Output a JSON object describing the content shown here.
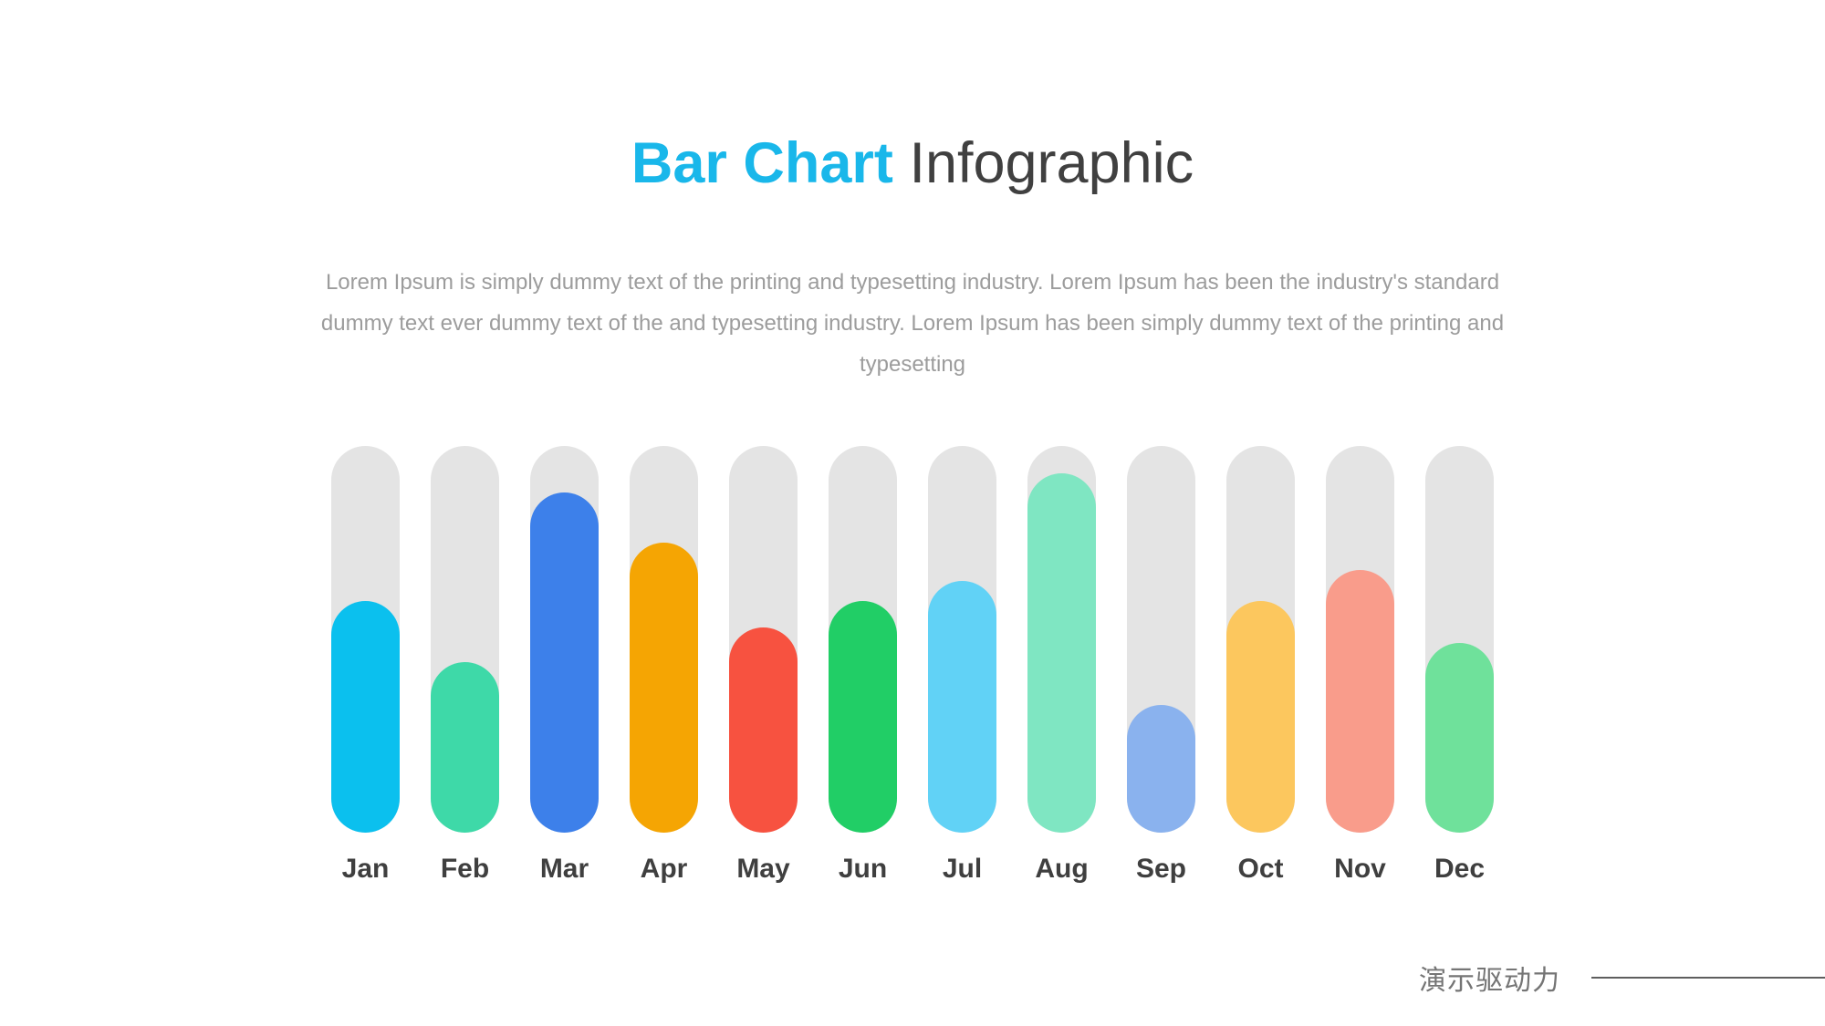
{
  "header": {
    "title_accent": "Bar Chart",
    "title_rest": "Infographic",
    "description": "Lorem Ipsum is simply dummy text of the printing and typesetting industry. Lorem Ipsum has been the industry's standard dummy text ever dummy text of the and typesetting industry. Lorem Ipsum has been simply dummy text of the printing and typesetting"
  },
  "chart_data": {
    "type": "bar",
    "title": "Bar Chart Infographic",
    "categories": [
      "Jan",
      "Feb",
      "Mar",
      "Apr",
      "May",
      "Jun",
      "Jul",
      "Aug",
      "Sep",
      "Oct",
      "Nov",
      "Dec"
    ],
    "values": [
      60,
      44,
      88,
      75,
      53,
      60,
      65,
      93,
      33,
      60,
      68,
      49
    ],
    "ylim": [
      0,
      100
    ],
    "unit": "percent of track height",
    "grid": false,
    "legend": false,
    "bar_colors": [
      "#0bc0ee",
      "#3ed9a8",
      "#3d80ea",
      "#f5a503",
      "#f75240",
      "#21ce66",
      "#61d2f6",
      "#7fe6c2",
      "#8ab2ee",
      "#fcc75e",
      "#f99c8b",
      "#6fe19b"
    ],
    "track_color": "#e4e4e4"
  },
  "footer": {
    "brand": "演示驱动力"
  },
  "colors": {
    "title_accent": "#19b7ea",
    "title_rest": "#404040",
    "paragraph": "#9c9c9c",
    "bar_label": "#3f3f3f",
    "footer_text": "#757575",
    "footer_line": "#5e5e5e",
    "background": "#ffffff"
  }
}
